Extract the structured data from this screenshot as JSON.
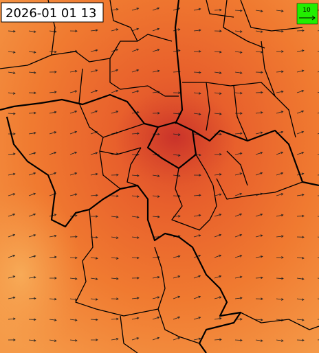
{
  "header": {
    "timestamp": "2026-01 01 13"
  },
  "legend": {
    "wind_reference": "10"
  }
}
